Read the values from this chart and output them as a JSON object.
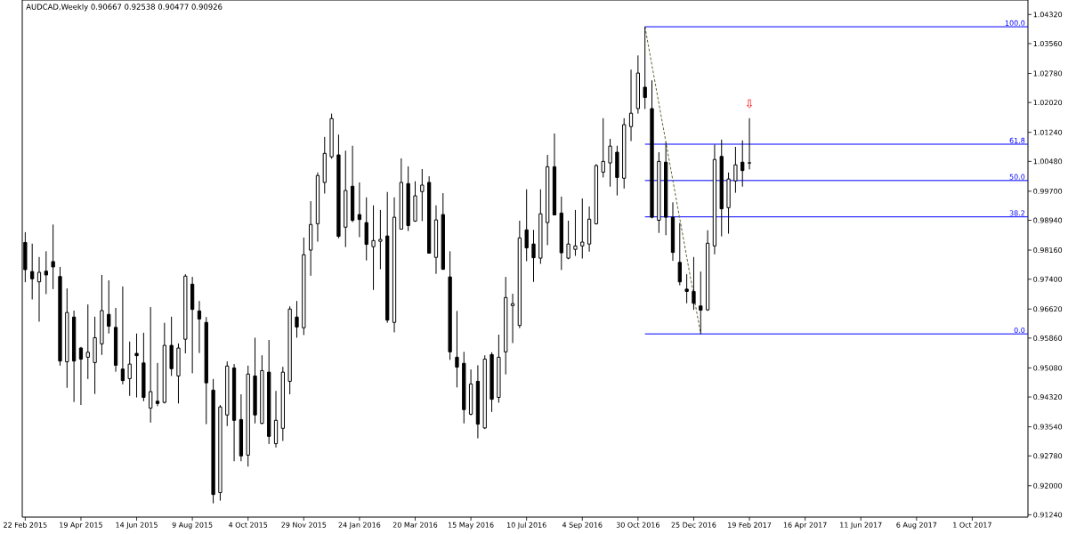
{
  "chart_data": {
    "type": "candlestick",
    "title": "AUDCAD,Weekly  0.90667 0.92538 0.90477 0.90926",
    "x": [
      "2015-02-22",
      "2015-03-01",
      "2015-03-08",
      "2015-03-15",
      "2015-03-22",
      "2015-03-29",
      "2015-04-05",
      "2015-04-12",
      "2015-04-19",
      "2015-04-26",
      "2015-05-03",
      "2015-05-10",
      "2015-05-17",
      "2015-05-24",
      "2015-05-31",
      "2015-06-07",
      "2015-06-14",
      "2015-06-21",
      "2015-06-28",
      "2015-07-05",
      "2015-07-12",
      "2015-07-19",
      "2015-07-26",
      "2015-08-02",
      "2015-08-09",
      "2015-08-16",
      "2015-08-23",
      "2015-08-30",
      "2015-09-06",
      "2015-09-13",
      "2015-09-20",
      "2015-09-27",
      "2015-10-04",
      "2015-10-11",
      "2015-10-18",
      "2015-10-25",
      "2015-11-01",
      "2015-11-08",
      "2015-11-15",
      "2015-11-22",
      "2015-11-29",
      "2015-12-06",
      "2015-12-13",
      "2015-12-20",
      "2015-12-27",
      "2016-01-03",
      "2016-01-10",
      "2016-01-17",
      "2016-01-24",
      "2016-01-31",
      "2016-02-07",
      "2016-02-14",
      "2016-02-21",
      "2016-02-28",
      "2016-03-06",
      "2016-03-13",
      "2016-03-20",
      "2016-03-27",
      "2016-04-03",
      "2016-04-10",
      "2016-04-17",
      "2016-04-24",
      "2016-05-01",
      "2016-05-08",
      "2016-05-15",
      "2016-05-22",
      "2016-05-29",
      "2016-06-05",
      "2016-06-12",
      "2016-06-19",
      "2016-06-26",
      "2016-07-03",
      "2016-07-10",
      "2016-07-17",
      "2016-07-24",
      "2016-07-31",
      "2016-08-07",
      "2016-08-14",
      "2016-08-21",
      "2016-08-28",
      "2016-09-04",
      "2016-09-11",
      "2016-09-18",
      "2016-09-25",
      "2016-10-02",
      "2016-10-09",
      "2016-10-16",
      "2016-10-23",
      "2016-10-30",
      "2016-11-06",
      "2016-11-13",
      "2016-11-20",
      "2016-11-27",
      "2016-12-04",
      "2016-12-11",
      "2016-12-18",
      "2016-12-25",
      "2017-01-01",
      "2017-01-08",
      "2017-01-15",
      "2017-01-22",
      "2017-01-29",
      "2017-02-05",
      "2017-02-12",
      "2017-02-19"
    ],
    "ohlc": [
      [
        0.9836,
        0.9863,
        0.9732,
        0.9765
      ],
      [
        0.976,
        0.9833,
        0.9687,
        0.9741
      ],
      [
        0.9733,
        0.9798,
        0.9629,
        0.9758
      ],
      [
        0.9761,
        0.9813,
        0.9701,
        0.9751
      ],
      [
        0.9786,
        0.9883,
        0.9714,
        0.9772
      ],
      [
        0.9747,
        0.9772,
        0.9514,
        0.9526
      ],
      [
        0.9524,
        0.9716,
        0.9456,
        0.9653
      ],
      [
        0.9641,
        0.9658,
        0.9419,
        0.9526
      ],
      [
        0.956,
        0.9563,
        0.9411,
        0.9531
      ],
      [
        0.9536,
        0.9674,
        0.9479,
        0.9549
      ],
      [
        0.9522,
        0.9642,
        0.944,
        0.9587
      ],
      [
        0.9571,
        0.9751,
        0.9542,
        0.9658
      ],
      [
        0.9648,
        0.9737,
        0.9598,
        0.9617
      ],
      [
        0.9614,
        0.9665,
        0.9498,
        0.9515
      ],
      [
        0.9505,
        0.9721,
        0.9465,
        0.9475
      ],
      [
        0.948,
        0.9577,
        0.9435,
        0.9518
      ],
      [
        0.9546,
        0.9598,
        0.9431,
        0.954
      ],
      [
        0.9521,
        0.96,
        0.9421,
        0.9431
      ],
      [
        0.9403,
        0.9667,
        0.9365,
        0.9446
      ],
      [
        0.9421,
        0.9521,
        0.9408,
        0.9415
      ],
      [
        0.9418,
        0.9626,
        0.9415,
        0.9567
      ],
      [
        0.9567,
        0.9642,
        0.9487,
        0.9506
      ],
      [
        0.9487,
        0.9572,
        0.9415,
        0.956
      ],
      [
        0.9583,
        0.9753,
        0.9546,
        0.9748
      ],
      [
        0.9727,
        0.9746,
        0.9494,
        0.9661
      ],
      [
        0.9657,
        0.9683,
        0.9547,
        0.9636
      ],
      [
        0.9627,
        0.9641,
        0.9361,
        0.9469
      ],
      [
        0.945,
        0.9479,
        0.9154,
        0.9177
      ],
      [
        0.9182,
        0.9411,
        0.9161,
        0.9406
      ],
      [
        0.9385,
        0.9525,
        0.9356,
        0.9513
      ],
      [
        0.9508,
        0.9518,
        0.9264,
        0.9371
      ],
      [
        0.9373,
        0.9439,
        0.9264,
        0.9278
      ],
      [
        0.928,
        0.9514,
        0.925,
        0.9492
      ],
      [
        0.9487,
        0.9587,
        0.9363,
        0.9385
      ],
      [
        0.9363,
        0.9541,
        0.9361,
        0.9501
      ],
      [
        0.9497,
        0.9581,
        0.9309,
        0.9329
      ],
      [
        0.931,
        0.9448,
        0.93,
        0.9371
      ],
      [
        0.935,
        0.9511,
        0.9317,
        0.9497
      ],
      [
        0.9473,
        0.9669,
        0.9439,
        0.9662
      ],
      [
        0.9641,
        0.9683,
        0.9587,
        0.9615
      ],
      [
        0.9613,
        0.9849,
        0.9594,
        0.9804
      ],
      [
        0.9816,
        0.9944,
        0.9749,
        0.9883
      ],
      [
        0.9885,
        1.0019,
        0.9838,
        1.0011
      ],
      [
        0.9993,
        1.0112,
        0.9964,
        1.0069
      ],
      [
        1.006,
        1.0173,
        1.0055,
        1.016
      ],
      [
        1.0065,
        1.0118,
        0.9847,
        0.9852
      ],
      [
        0.9876,
        1.0076,
        0.9824,
        0.9972
      ],
      [
        0.9983,
        1.0089,
        0.9889,
        0.9894
      ],
      [
        0.9909,
        0.9993,
        0.985,
        0.9896
      ],
      [
        0.9888,
        0.9954,
        0.9789,
        0.9831
      ],
      [
        0.9825,
        0.9933,
        0.9712,
        0.9841
      ],
      [
        0.9839,
        0.9921,
        0.9766,
        0.9844
      ],
      [
        0.9853,
        0.9968,
        0.9626,
        0.9633
      ],
      [
        0.9627,
        0.9954,
        0.9601,
        0.9902
      ],
      [
        0.9871,
        1.0056,
        0.9871,
        0.9993
      ],
      [
        0.999,
        1.0035,
        0.9866,
        0.988
      ],
      [
        0.9892,
        0.9996,
        0.989,
        0.9958
      ],
      [
        0.9969,
        1.0028,
        0.9892,
        0.9986
      ],
      [
        0.9993,
        1.0009,
        0.9808,
        0.9808
      ],
      [
        0.9797,
        0.9933,
        0.9754,
        0.9895
      ],
      [
        0.9909,
        0.9965,
        0.9764,
        0.9766
      ],
      [
        0.9746,
        0.9813,
        0.9529,
        0.955
      ],
      [
        0.9536,
        0.9657,
        0.9457,
        0.951
      ],
      [
        0.952,
        0.955,
        0.9363,
        0.9399
      ],
      [
        0.9387,
        0.9504,
        0.9384,
        0.9466
      ],
      [
        0.9473,
        0.9515,
        0.9324,
        0.9361
      ],
      [
        0.9351,
        0.9541,
        0.9348,
        0.9531
      ],
      [
        0.9543,
        0.9549,
        0.9393,
        0.9426
      ],
      [
        0.9431,
        0.9595,
        0.9417,
        0.9536
      ],
      [
        0.955,
        0.9746,
        0.9491,
        0.9692
      ],
      [
        0.9671,
        0.9702,
        0.9573,
        0.9676
      ],
      [
        0.9619,
        0.9893,
        0.9612,
        0.9848
      ],
      [
        0.9869,
        0.9975,
        0.9787,
        0.9822
      ],
      [
        0.9832,
        0.9869,
        0.9733,
        0.9796
      ],
      [
        0.9795,
        0.9975,
        0.978,
        0.9911
      ],
      [
        0.9888,
        1.0065,
        0.9829,
        1.0034
      ],
      [
        1.0034,
        1.0121,
        0.9908,
        0.9908
      ],
      [
        0.9913,
        0.9956,
        0.9764,
        0.9809
      ],
      [
        0.9795,
        0.9893,
        0.9792,
        0.9832
      ],
      [
        0.9818,
        0.9921,
        0.9801,
        0.9827
      ],
      [
        0.9827,
        0.9951,
        0.9794,
        0.9837
      ],
      [
        0.9832,
        0.993,
        0.9812,
        0.9897
      ],
      [
        0.9885,
        1.0041,
        0.9883,
        1.0037
      ],
      [
        1.002,
        1.0161,
        1.0006,
        1.0048
      ],
      [
        1.0044,
        1.0107,
        0.9982,
        1.0088
      ],
      [
        1.0072,
        1.0089,
        0.9959,
        1.0006
      ],
      [
        1.0004,
        1.0161,
        0.9977,
        1.0144
      ],
      [
        1.0139,
        1.0288,
        1.0101,
        1.0174
      ],
      [
        1.0186,
        1.0325,
        1.0173,
        1.0279
      ],
      [
        1.0242,
        1.04,
        1.0185,
        1.0215
      ],
      [
        1.0186,
        1.026,
        0.9899,
        0.9902
      ],
      [
        0.9894,
        1.0072,
        0.9861,
        1.0048
      ],
      [
        1.0046,
        1.0097,
        0.9855,
        0.9902
      ],
      [
        0.9902,
        0.9941,
        0.9788,
        0.981
      ],
      [
        0.9784,
        0.9887,
        0.9724,
        0.9733
      ],
      [
        0.9714,
        0.9753,
        0.9677,
        0.9708
      ],
      [
        0.9708,
        0.9798,
        0.966,
        0.9677
      ],
      [
        0.967,
        0.976,
        0.9597,
        0.9659
      ],
      [
        0.966,
        0.9868,
        0.9657,
        0.9834
      ],
      [
        0.9827,
        1.0092,
        0.9805,
        1.0053
      ],
      [
        1.0061,
        1.0105,
        0.9852,
        0.9924
      ],
      [
        0.9927,
        1.0019,
        0.9859,
        1.0002
      ],
      [
        0.9997,
        1.0086,
        0.9966,
        1.0039
      ],
      [
        1.0046,
        1.0103,
        0.9982,
        1.0024
      ],
      [
        1.0044,
        1.0161,
        1.0027,
        1.0044
      ]
    ],
    "series": [
      {
        "type": "line",
        "name": "100.0",
        "color": "#0000ff",
        "x": [
          "2016-11-06",
          "2017-11-26"
        ],
        "values": [
          1.04,
          1.04
        ]
      },
      {
        "type": "line",
        "name": "61.8",
        "color": "#0000ff",
        "x": [
          "2016-11-06",
          "2017-11-26"
        ],
        "values": [
          1.0093,
          1.0093
        ]
      },
      {
        "type": "line",
        "name": "50.0",
        "color": "#0000ff",
        "x": [
          "2016-11-06",
          "2017-11-26"
        ],
        "values": [
          0.9998,
          0.9998
        ]
      },
      {
        "type": "line",
        "name": "38.2",
        "color": "#0000ff",
        "x": [
          "2016-11-06",
          "2017-11-26"
        ],
        "values": [
          0.9903,
          0.9903
        ]
      },
      {
        "type": "line",
        "name": "0.0",
        "color": "#0000ff",
        "x": [
          "2016-11-06",
          "2017-11-26"
        ],
        "values": [
          0.9597,
          0.9597
        ]
      },
      {
        "type": "line",
        "color": "#556b2f",
        "line_style": "dashed",
        "x": [
          "2016-11-06",
          "2017-01-01"
        ],
        "values": [
          1.04,
          0.9597
        ]
      }
    ],
    "annotations": [
      {
        "text": "⇩",
        "x": "2017-02-19",
        "y": 1.0161
      }
    ],
    "xlim": [
      "2015-02-19",
      "2017-11-26"
    ],
    "xticks": [
      {
        "value": "2015-02-22",
        "label": "22 Feb 2015"
      },
      {
        "value": "2015-04-19",
        "label": "19 Apr 2015"
      },
      {
        "value": "2015-06-14",
        "label": "14 Jun 2015"
      },
      {
        "value": "2015-08-09",
        "label": "9 Aug 2015"
      },
      {
        "value": "2015-10-04",
        "label": "4 Oct 2015"
      },
      {
        "value": "2015-11-29",
        "label": "29 Nov 2015"
      },
      {
        "value": "2016-01-24",
        "label": "24 Jan 2016"
      },
      {
        "value": "2016-03-20",
        "label": "20 Mar 2016"
      },
      {
        "value": "2016-05-15",
        "label": "15 May 2016"
      },
      {
        "value": "2016-07-10",
        "label": "10 Jul 2016"
      },
      {
        "value": "2016-09-04",
        "label": "4 Sep 2016"
      },
      {
        "value": "2016-10-30",
        "label": "30 Oct 2016"
      },
      {
        "value": "2016-12-25",
        "label": "25 Dec 2016"
      },
      {
        "value": "2017-02-19",
        "label": "19 Feb 2017"
      },
      {
        "value": "2017-04-16",
        "label": "16 Apr 2017"
      },
      {
        "value": "2017-06-11",
        "label": "11 Jun 2017"
      },
      {
        "value": "2017-08-06",
        "label": "6 Aug 2017"
      },
      {
        "value": "2017-10-01",
        "label": "1 Oct 2017"
      }
    ],
    "ylim": [
      0.9118,
      1.047
    ],
    "yticks": [
      {
        "value": 1.0432,
        "label": "1.04320"
      },
      {
        "value": 1.0356,
        "label": "1.03560"
      },
      {
        "value": 1.0278,
        "label": "1.02780"
      },
      {
        "value": 1.0202,
        "label": "1.02020"
      },
      {
        "value": 1.0124,
        "label": "1.01240"
      },
      {
        "value": 1.0048,
        "label": "1.00480"
      },
      {
        "value": 0.997,
        "label": "0.99700"
      },
      {
        "value": 0.9894,
        "label": "0.98940"
      },
      {
        "value": 0.9816,
        "label": "0.98160"
      },
      {
        "value": 0.974,
        "label": "0.97400"
      },
      {
        "value": 0.9662,
        "label": "0.96620"
      },
      {
        "value": 0.9586,
        "label": "0.95860"
      },
      {
        "value": 0.9508,
        "label": "0.95080"
      },
      {
        "value": 0.9432,
        "label": "0.94320"
      },
      {
        "value": 0.9354,
        "label": "0.93540"
      },
      {
        "value": 0.9278,
        "label": "0.92780"
      },
      {
        "value": 0.92,
        "label": "0.92000"
      },
      {
        "value": 0.9124,
        "label": "0.91240"
      }
    ]
  }
}
